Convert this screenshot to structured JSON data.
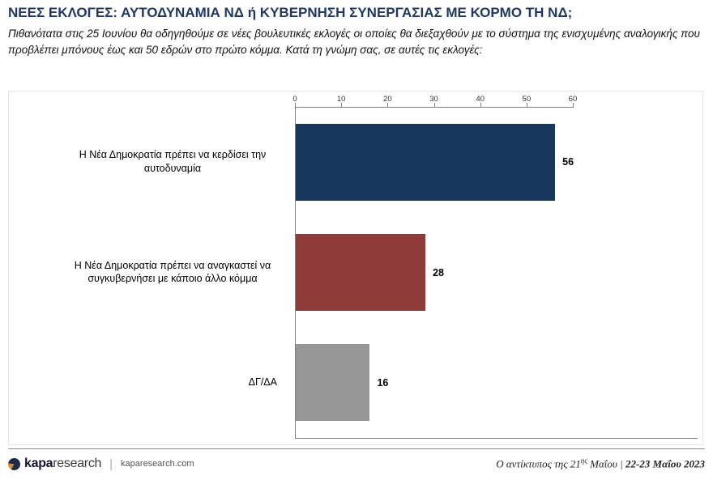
{
  "header": {
    "title": "ΝΕΕΣ ΕΚΛΟΓΕΣ: ΑΥΤΟΔΥΝΑΜΙΑ ΝΔ ή ΚΥΒΕΡΝΗΣΗ ΣΥΝΕΡΓΑΣΙΑΣ ΜΕ ΚΟΡΜΟ ΤΗ ΝΔ;",
    "subtitle": "Πιθανότατα στις 25 Ιουνίου θα οδηγηθούμε σε νέες βουλευτικές εκλογές οι οποίες θα διεξαχθούν με το σύστημα της ενισχυμένης αναλογικής που προβλέπει μπόνους έως και 50 εδρών στο πρώτο κόμμα. Κατά τη γνώμη σας, σε αυτές τις εκλογές:"
  },
  "chart_data": {
    "type": "bar",
    "orientation": "horizontal",
    "title": "",
    "categories": [
      "Η Νέα Δημοκρατία πρέπει να κερδίσει την αυτοδυναμία",
      "Η Νέα Δημοκρατία πρέπει να αναγκαστεί να συγκυβερνήσει με κάποιο άλλο κόμμα",
      "ΔΓ/ΔΑ"
    ],
    "values": [
      56,
      28,
      16
    ],
    "colors": [
      "#17375d",
      "#8e3b3a",
      "#979797"
    ],
    "xlim": [
      0,
      60
    ],
    "xticks": [
      0,
      10,
      20,
      30,
      40,
      50,
      60
    ],
    "grid": false,
    "value_labels": true,
    "axis_position": "top"
  },
  "footer": {
    "logo_text_bold": "kapa",
    "logo_text_light": "research",
    "divider": "|",
    "website": "kaparesearch.com",
    "note_prefix": "Ο αντίκτυπος της 21",
    "note_sup": "ης",
    "note_mid": " Μαΐου ",
    "note_divider": "| ",
    "note_date": "22-23 Μαΐου 2023"
  }
}
